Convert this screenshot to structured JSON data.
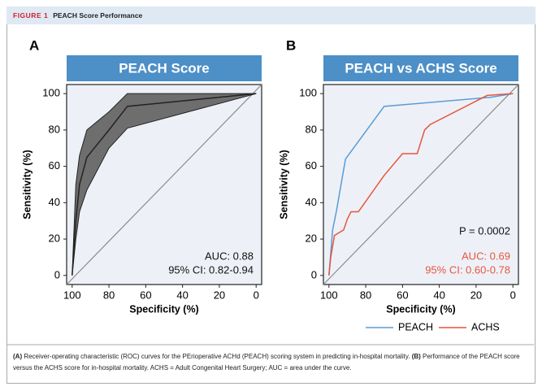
{
  "header": {
    "label": "FIGURE 1",
    "title": "PEACH Score Performance"
  },
  "chart_data": [
    {
      "type": "line",
      "panel": "A",
      "title": "PEACH Score",
      "xlabel": "Specificity (%)",
      "ylabel": "Sensitivity (%)",
      "xlim": [
        103,
        -3
      ],
      "ylim": [
        -5,
        105
      ],
      "xticks": [
        100,
        80,
        60,
        40,
        20,
        0
      ],
      "yticks": [
        0,
        20,
        40,
        60,
        80,
        100
      ],
      "x": [
        100,
        98,
        96,
        92,
        80,
        70,
        0
      ],
      "series": [
        {
          "color": "#222222",
          "values": [
            0,
            30,
            50,
            65,
            80,
            93,
            100
          ]
        }
      ],
      "band_lower": [
        0,
        20,
        35,
        47,
        70,
        81,
        100
      ],
      "band_upper": [
        0,
        50,
        66,
        80,
        90,
        100,
        100
      ],
      "band_color": "#6e6e6e",
      "annotations": [
        {
          "text": "AUC: 0.88",
          "color": "#111111"
        },
        {
          "text": "95% CI: 0.82-0.94",
          "color": "#111111"
        }
      ]
    },
    {
      "type": "line",
      "panel": "B",
      "title": "PEACH vs ACHS Score",
      "xlabel": "Specificity (%)",
      "ylabel": "Sensitivity (%)",
      "xlim": [
        103,
        -3
      ],
      "ylim": [
        -5,
        105
      ],
      "xticks": [
        100,
        80,
        60,
        40,
        20,
        0
      ],
      "yticks": [
        0,
        20,
        40,
        60,
        80,
        100
      ],
      "series": [
        {
          "name": "PEACH",
          "color": "#5a9bd4",
          "x": [
            100,
            98,
            96,
            91,
            70,
            12,
            0
          ],
          "values": [
            0,
            25,
            35,
            64,
            93,
            98,
            100
          ]
        },
        {
          "name": "ACHS",
          "color": "#e8553e",
          "x": [
            100,
            99,
            97,
            92,
            90,
            88,
            84,
            70,
            60,
            52,
            48,
            45,
            14,
            0
          ],
          "values": [
            0,
            10,
            22,
            25,
            31,
            35,
            35,
            55,
            67,
            67,
            80,
            83,
            99,
            100
          ]
        }
      ],
      "annotations": [
        {
          "text": "P = 0.0002",
          "color": "#111111"
        },
        {
          "text": "AUC: 0.69",
          "color": "#e8553e"
        },
        {
          "text": "95% CI: 0.60-0.78",
          "color": "#e8553e"
        }
      ]
    }
  ],
  "caption": [
    "(A)",
    " Receiver-operating characteristic (ROC) curves for the PErioperative ACHd (PEACH) scoring system in predicting in-hospital mortality. ",
    "(B)",
    " Performance of the PEACH score versus the ACHS score for in-hospital mortality. ACHS = Adult Congenital Heart Surgery; AUC = area under the curve."
  ]
}
